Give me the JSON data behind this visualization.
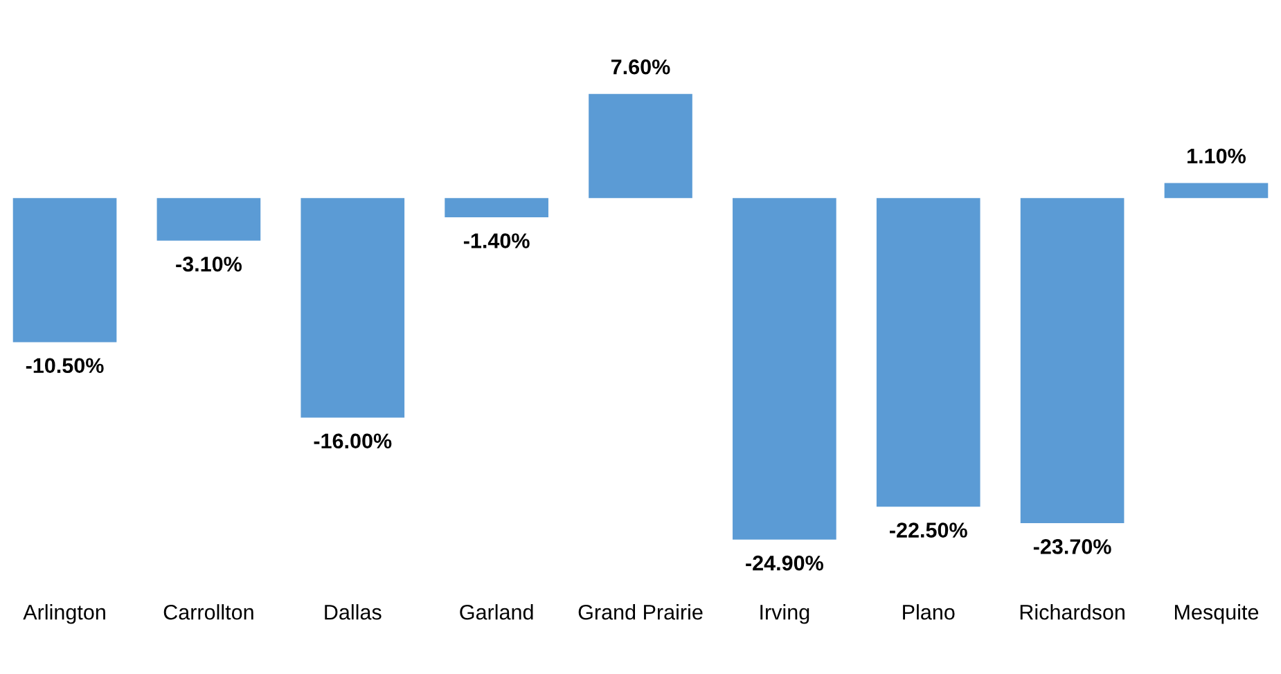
{
  "chart_data": {
    "type": "bar",
    "categories": [
      "Arlington",
      "Carrollton",
      "Dallas",
      "Garland",
      "Grand Prairie",
      "Irving",
      "Plano",
      "Richardson",
      "Mesquite"
    ],
    "values": [
      -10.5,
      -3.1,
      -16.0,
      -1.4,
      7.6,
      -24.9,
      -22.5,
      -23.7,
      1.1
    ],
    "value_labels": [
      "-10.50%",
      "-3.10%",
      "-16.00%",
      "-1.40%",
      "7.60%",
      "-24.90%",
      "-22.50%",
      "-23.70%",
      "1.10%"
    ],
    "color": "#5b9bd5"
  }
}
